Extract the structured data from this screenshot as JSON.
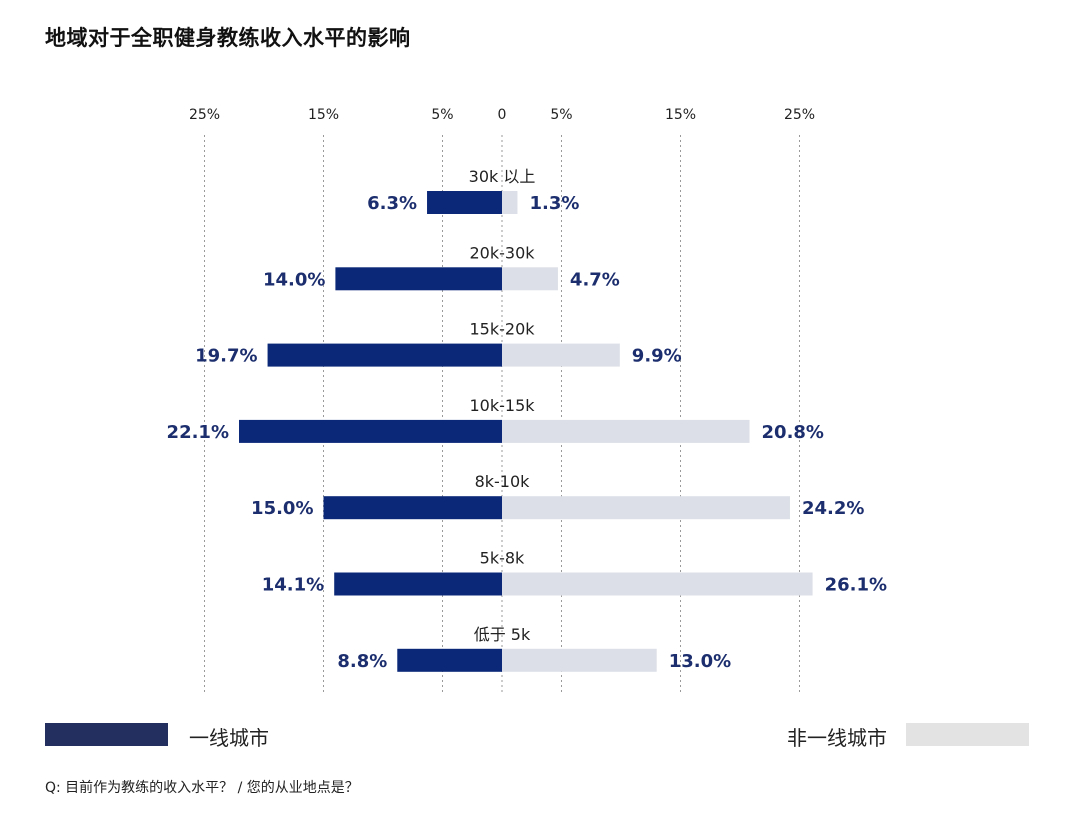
{
  "title": "地域对于全职健身教练收入水平的影响",
  "chart_data": {
    "type": "bar",
    "orientation": "horizontal-diverging",
    "axis_ticks": [
      {
        "value": -25,
        "label": "25%"
      },
      {
        "value": -15,
        "label": "15%"
      },
      {
        "value": -5,
        "label": "5%"
      },
      {
        "value": 0,
        "label": "0"
      },
      {
        "value": 5,
        "label": "5%"
      },
      {
        "value": 15,
        "label": "15%"
      },
      {
        "value": 25,
        "label": "25%"
      }
    ],
    "xlim": [
      -30,
      30
    ],
    "categories": [
      "30k 以上",
      "20k-30k",
      "15k-20k",
      "10k-15k",
      "8k-10k",
      "5k-8k",
      "低于 5k"
    ],
    "series": [
      {
        "name": "一线城市",
        "side": "left",
        "color": "#0b2878",
        "values": [
          6.3,
          14.0,
          19.7,
          22.1,
          15.0,
          14.1,
          8.8
        ],
        "labels": [
          "6.3%",
          "14.0%",
          "19.7%",
          "22.1%",
          "15.0%",
          "14.1%",
          "8.8%"
        ]
      },
      {
        "name": "非一线城市",
        "side": "right",
        "color": "#dcdfe7",
        "values": [
          1.3,
          4.7,
          9.9,
          20.8,
          24.2,
          26.1,
          13.0
        ],
        "labels": [
          "1.3%",
          "4.7%",
          "9.9%",
          "20.8%",
          "24.2%",
          "26.1%",
          "13.0%"
        ]
      }
    ],
    "label_color": "#1c2e6e",
    "grid": "dotted vertical"
  },
  "legend": {
    "items": [
      {
        "label": "一线城市",
        "color": "#23305f"
      },
      {
        "label": "非一线城市",
        "color": "#e3e3e3"
      }
    ]
  },
  "footnote": "Q: 目前作为教练的收入水平？ / 您的从业地点是？"
}
